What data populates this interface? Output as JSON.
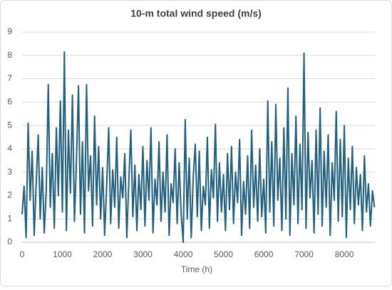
{
  "chart_data": {
    "type": "line",
    "title": "10-m total wind speed (m/s)",
    "x_label": "Time (h)",
    "color": "#1f5f7f",
    "x": [
      0,
      50,
      100,
      150,
      200,
      250,
      300,
      350,
      400,
      450,
      500,
      550,
      600,
      650,
      700,
      750,
      800,
      850,
      900,
      950,
      1000,
      1050,
      1100,
      1150,
      1200,
      1250,
      1300,
      1350,
      1400,
      1450,
      1500,
      1550,
      1600,
      1650,
      1700,
      1750,
      1800,
      1850,
      1900,
      1950,
      2000,
      2050,
      2100,
      2150,
      2200,
      2250,
      2300,
      2350,
      2400,
      2450,
      2500,
      2550,
      2600,
      2650,
      2700,
      2750,
      2800,
      2850,
      2900,
      2950,
      3000,
      3050,
      3100,
      3150,
      3200,
      3250,
      3300,
      3350,
      3400,
      3450,
      3500,
      3550,
      3600,
      3650,
      3700,
      3750,
      3800,
      3850,
      3900,
      3950,
      4000,
      4050,
      4100,
      4150,
      4200,
      4250,
      4300,
      4350,
      4400,
      4450,
      4500,
      4550,
      4600,
      4650,
      4700,
      4750,
      4800,
      4850,
      4900,
      4950,
      5000,
      5050,
      5100,
      5150,
      5200,
      5250,
      5300,
      5350,
      5400,
      5450,
      5500,
      5550,
      5600,
      5650,
      5700,
      5750,
      5800,
      5850,
      5900,
      5950,
      6000,
      6050,
      6100,
      6150,
      6200,
      6250,
      6300,
      6350,
      6400,
      6450,
      6500,
      6550,
      6600,
      6650,
      6700,
      6750,
      6800,
      6850,
      6900,
      6950,
      7000,
      7050,
      7100,
      7150,
      7200,
      7250,
      7300,
      7350,
      7400,
      7450,
      7500,
      7550,
      7600,
      7650,
      7700,
      7750,
      7800,
      7850,
      7900,
      7950,
      8000,
      8050,
      8100,
      8150,
      8200,
      8250,
      8300,
      8350,
      8400,
      8450,
      8500,
      8550,
      8600,
      8650,
      8700,
      8750
    ],
    "values": [
      1.2,
      2.4,
      0.2,
      5.1,
      1.8,
      3.9,
      0.3,
      2.5,
      4.6,
      1.0,
      3.2,
      0.4,
      2.2,
      6.75,
      1.5,
      3.8,
      0.6,
      4.9,
      2.0,
      6.05,
      1.3,
      8.15,
      0.5,
      4.8,
      2.1,
      6.3,
      0.9,
      3.5,
      6.7,
      1.2,
      4.3,
      0.4,
      6.75,
      2.2,
      3.7,
      0.7,
      5.4,
      1.6,
      4.1,
      1.0,
      3.2,
      0.3,
      2.4,
      4.9,
      0.8,
      3.1,
      1.5,
      4.5,
      0.6,
      2.8,
      1.9,
      3.8,
      0.2,
      2.6,
      4.8,
      1.1,
      3.3,
      0.5,
      2.9,
      1.4,
      4.1,
      0.7,
      3.5,
      1.8,
      4.9,
      0.4,
      2.7,
      1.6,
      4.3,
      0.9,
      3.0,
      1.3,
      4.6,
      0.3,
      2.5,
      1.7,
      4.0,
      0.8,
      3.4,
      1.2,
      0.0,
      5.25,
      1.0,
      3.6,
      0.2,
      2.8,
      4.2,
      1.1,
      3.9,
      0.5,
      2.4,
      1.6,
      4.5,
      0.6,
      3.1,
      1.9,
      5.05,
      0.9,
      3.4,
      1.3,
      2.9,
      0.5,
      3.8,
      1.4,
      4.1,
      0.8,
      3.0,
      1.7,
      4.4,
      0.3,
      2.6,
      1.2,
      3.7,
      0.6,
      4.8,
      1.5,
      3.3,
      0.9,
      4.0,
      1.1,
      2.7,
      0.4,
      6.05,
      1.3,
      4.3,
      0.7,
      5.9,
      1.8,
      3.6,
      0.5,
      4.9,
      1.0,
      6.6,
      0.3,
      3.8,
      1.6,
      5.4,
      0.8,
      4.2,
      1.4,
      8.1,
      0.6,
      4.7,
      1.9,
      3.5,
      0.4,
      4.8,
      1.2,
      5.75,
      0.7,
      3.9,
      1.5,
      4.6,
      0.3,
      3.4,
      1.8,
      5.6,
      0.9,
      4.4,
      1.1,
      5.0,
      0.2,
      3.6,
      1.4,
      4.1,
      0.8,
      3.2,
      1.6,
      2.9,
      0.5,
      3.7,
      1.3,
      2.5,
      0.7,
      2.2,
      1.5
    ],
    "xlim": [
      0,
      8760
    ],
    "xticks": [
      0,
      1000,
      2000,
      3000,
      4000,
      5000,
      6000,
      7000,
      8000
    ],
    "ylim": [
      0,
      9
    ],
    "yticks": [
      0,
      1,
      2,
      3,
      4,
      5,
      6,
      7,
      8,
      9
    ],
    "grid": true
  }
}
